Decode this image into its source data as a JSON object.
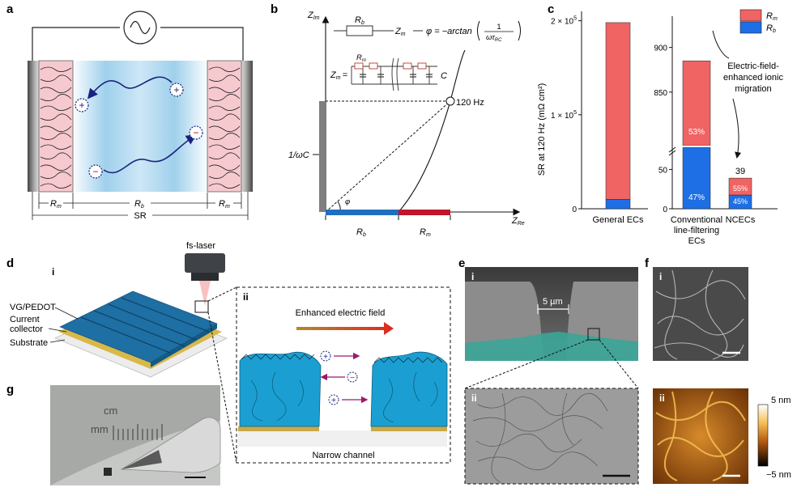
{
  "panel_letters": {
    "a": "a",
    "b": "b",
    "c": "c",
    "d": "d",
    "e": "e",
    "f": "f",
    "g": "g"
  },
  "panel_a": {
    "rm_left": "R",
    "rm_sub": "m",
    "rb": "R",
    "rb_sub": "b",
    "rm_right": "R",
    "sr": "SR",
    "plus": "+",
    "minus": "−"
  },
  "panel_b": {
    "y_axis": "Z",
    "y_axis_sub": "Im",
    "x_axis": "Z",
    "x_axis_sub": "Re",
    "rb_label": "R",
    "rb_label_sub": "b",
    "zm_label": "Z",
    "zm_label_sub": "m",
    "phase_eq": "φ = −arctan",
    "frac_num": "1",
    "frac_den": "ωτ",
    "frac_den_sub": "RC",
    "zm_eq": "Z",
    "zm_eq_sub": "m",
    "equals": "=",
    "res_label": "R",
    "res_label_sub": "m",
    "cap_label": "C",
    "freq": "120 Hz",
    "inv_wc": "1/ωC",
    "phi": "φ",
    "bar_rb": "R",
    "bar_rb_sub": "b",
    "bar_rm": "R",
    "bar_rm_sub": "m"
  },
  "panel_c": {
    "ylabel": "SR at 120 Hz (mΩ cm²)",
    "legend_rm": "R",
    "legend_rm_sub": "m",
    "legend_rb": "R",
    "legend_rb_sub": "b",
    "tick_2e5": "2 × 10",
    "tick_2e5_exp": "5",
    "tick_1e5": "1 × 10",
    "tick_1e5_exp": "5",
    "tick_0_left": "0",
    "tick_900": "900",
    "tick_850": "850",
    "tick_50": "50",
    "tick_0_right": "0",
    "cat_general": "General ECs",
    "cat_conv_1": "Conventional",
    "cat_conv_2": "line-filtering",
    "cat_conv_3": "ECs",
    "cat_ncec": "NCECs",
    "pct_conv_rm": "53%",
    "pct_conv_rb": "47%",
    "pct_ncec_rm": "55%",
    "pct_ncec_rb": "45%",
    "value_ncec": "39",
    "annotation_1": "Electric-field-",
    "annotation_2": "enhanced ionic",
    "annotation_3": "migration",
    "colors": {
      "rm": "#f06464",
      "rb": "#1e6fe6"
    }
  },
  "chart_data": {
    "type": "bar",
    "categories": [
      "General ECs",
      "Conventional line-filtering ECs",
      "NCECs"
    ],
    "series": [
      {
        "name": "Rm",
        "values": [
          188000,
          470,
          21.5
        ]
      },
      {
        "name": "Rb",
        "values": [
          10000,
          415,
          17.5
        ]
      }
    ],
    "totals": [
      198000,
      885,
      39
    ],
    "percent_labels": {
      "Conventional line-filtering ECs": {
        "Rm": "53%",
        "Rb": "47%"
      },
      "NCECs": {
        "Rm": "55%",
        "Rb": "45%"
      }
    },
    "ylabel": "SR at 120 Hz (mΩ cm²)",
    "stacked": true,
    "broken_axis": true
  },
  "panel_d": {
    "sub_i": "i",
    "sub_ii": "ii",
    "fs_laser": "fs-laser",
    "vg_pedot": "VG/PEDOT",
    "collector_1": "Current",
    "collector_2": "collector",
    "substrate": "Substrate",
    "enhanced_field": "Enhanced electric field",
    "narrow_channel": "Narrow channel",
    "plus": "+",
    "minus": "−"
  },
  "panel_e": {
    "sub_i": "i",
    "sub_ii": "ii",
    "scale_text": "5 µm"
  },
  "panel_f": {
    "sub_i": "i",
    "sub_ii": "ii",
    "cbar_top": "5 nm",
    "cbar_bottom": "−5 nm"
  },
  "panel_g": {
    "cm": "cm",
    "mm": "mm"
  }
}
